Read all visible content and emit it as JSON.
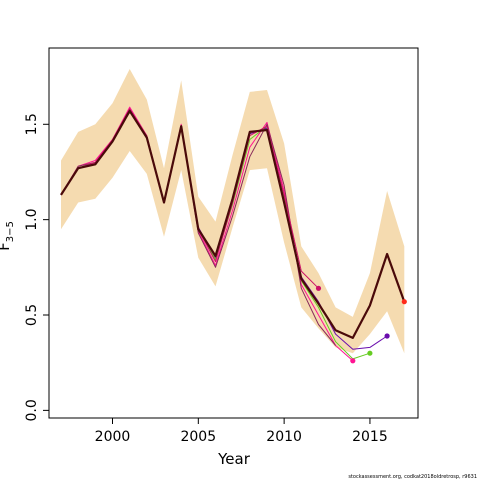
{
  "chart_data": {
    "type": "line",
    "xlabel": "Year",
    "ylabel": "F",
    "ylabel_subscript": "3−5",
    "xlim": [
      1996.3,
      2017.8
    ],
    "ylim": [
      -0.04,
      1.9
    ],
    "x_ticks": [
      2000,
      2005,
      2010,
      2015
    ],
    "y_ticks": [
      0.0,
      0.5,
      1.0,
      1.5
    ],
    "y_tick_labels": [
      "0.0",
      "0.5",
      "1.0",
      "1.5"
    ],
    "grid": false,
    "legend": "none",
    "colors": {
      "band": "#f5dbb0",
      "main": "#4a0a0a",
      "end_point": "#ff2a1a"
    },
    "confidence_band": {
      "x": [
        1997,
        1998,
        1999,
        2000,
        2001,
        2002,
        2003,
        2004,
        2005,
        2006,
        2007,
        2008,
        2009,
        2010,
        2011,
        2012,
        2013,
        2014,
        2015,
        2016,
        2017
      ],
      "lower": [
        0.95,
        1.09,
        1.11,
        1.22,
        1.36,
        1.24,
        0.91,
        1.26,
        0.8,
        0.65,
        0.96,
        1.26,
        1.27,
        0.88,
        0.54,
        0.43,
        0.33,
        0.3,
        0.4,
        0.52,
        0.3
      ],
      "upper": [
        1.31,
        1.46,
        1.5,
        1.61,
        1.79,
        1.63,
        1.27,
        1.73,
        1.12,
        0.99,
        1.34,
        1.67,
        1.68,
        1.4,
        0.86,
        0.72,
        0.54,
        0.49,
        0.72,
        1.15,
        0.86
      ]
    },
    "series": [
      {
        "role": "main",
        "color": "#4a0a0a",
        "x": [
          1997,
          1998,
          1999,
          2000,
          2001,
          2002,
          2003,
          2004,
          2005,
          2006,
          2007,
          2008,
          2009,
          2010,
          2011,
          2012,
          2013,
          2014,
          2015,
          2016,
          2017
        ],
        "values": [
          1.13,
          1.27,
          1.29,
          1.41,
          1.57,
          1.43,
          1.09,
          1.49,
          0.95,
          0.81,
          1.11,
          1.46,
          1.47,
          1.09,
          0.69,
          0.56,
          0.42,
          0.38,
          0.55,
          0.82,
          0.57
        ]
      },
      {
        "role": "retro",
        "color": "#6a0dad",
        "x": [
          1997,
          1998,
          1999,
          2000,
          2001,
          2002,
          2003,
          2004,
          2005,
          2006,
          2007,
          2008,
          2009,
          2010,
          2011,
          2012,
          2013,
          2014,
          2015,
          2016
        ],
        "values": [
          1.13,
          1.27,
          1.3,
          1.41,
          1.58,
          1.43,
          1.09,
          1.49,
          0.96,
          0.8,
          1.1,
          1.45,
          1.48,
          1.1,
          0.7,
          0.57,
          0.4,
          0.32,
          0.33,
          0.39
        ]
      },
      {
        "role": "retro",
        "color": "#66cc22",
        "x": [
          1997,
          1998,
          1999,
          2000,
          2001,
          2002,
          2003,
          2004,
          2005,
          2006,
          2007,
          2008,
          2009,
          2010,
          2011,
          2012,
          2013,
          2014,
          2015
        ],
        "values": [
          1.13,
          1.27,
          1.3,
          1.41,
          1.58,
          1.43,
          1.09,
          1.49,
          0.95,
          0.79,
          1.08,
          1.42,
          1.49,
          1.12,
          0.68,
          0.54,
          0.36,
          0.27,
          0.3
        ]
      },
      {
        "role": "retro",
        "color": "#ff1493",
        "x": [
          1997,
          1998,
          1999,
          2000,
          2001,
          2002,
          2003,
          2004,
          2005,
          2006,
          2007,
          2008,
          2009,
          2010,
          2011,
          2012,
          2013,
          2014
        ],
        "values": [
          1.13,
          1.28,
          1.31,
          1.42,
          1.59,
          1.44,
          1.09,
          1.5,
          0.94,
          0.76,
          1.05,
          1.38,
          1.51,
          1.15,
          0.66,
          0.5,
          0.34,
          0.26
        ]
      },
      {
        "role": "retro",
        "color": "#8a2a5a",
        "x": [
          1997,
          1998,
          1999,
          2000,
          2001,
          2002,
          2003,
          2004,
          2005,
          2006,
          2007,
          2008,
          2009,
          2010,
          2011,
          2012,
          2013
        ],
        "values": [
          1.13,
          1.28,
          1.3,
          1.41,
          1.58,
          1.43,
          1.09,
          1.49,
          0.93,
          0.75,
          1.02,
          1.33,
          1.5,
          1.18,
          0.64,
          0.45,
          0.34
        ]
      },
      {
        "role": "retro",
        "color": "#cc1166",
        "x": [
          1997,
          1998,
          1999,
          2000,
          2001,
          2002,
          2003,
          2004,
          2005,
          2006,
          2007,
          2008,
          2009,
          2010,
          2011,
          2012
        ],
        "values": [
          1.13,
          1.27,
          1.3,
          1.42,
          1.58,
          1.44,
          1.09,
          1.49,
          0.95,
          0.78,
          1.09,
          1.44,
          1.49,
          1.13,
          0.73,
          0.64
        ]
      }
    ],
    "end_points": [
      {
        "x": 2012,
        "y": 0.64,
        "color": "#cc1166"
      },
      {
        "x": 2014,
        "y": 0.26,
        "color": "#ff1493"
      },
      {
        "x": 2015,
        "y": 0.3,
        "color": "#66cc22"
      },
      {
        "x": 2016,
        "y": 0.39,
        "color": "#6a0dad"
      },
      {
        "x": 2017,
        "y": 0.57,
        "color": "#ff2a1a"
      }
    ],
    "footnote": "stockassessment.org, codkat2018oldretrosp, r9631"
  }
}
